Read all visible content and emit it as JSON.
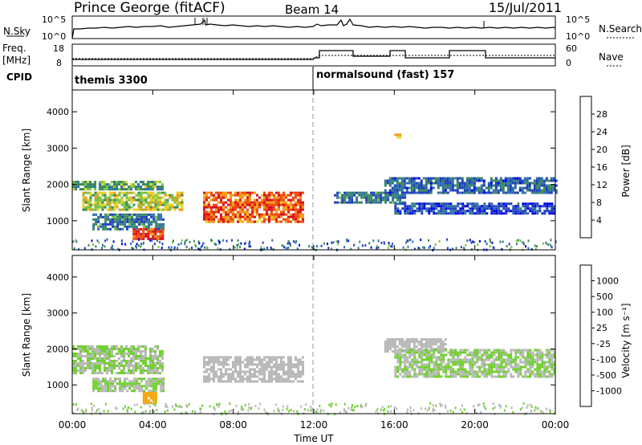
{
  "header": {
    "title": "Prince George (fitACF)",
    "beam": "Beam 14",
    "date": "15/Jul/2011"
  },
  "top_panels": {
    "nsky_label": "N.Sky",
    "nsky_ticks": [
      "10^5",
      "10^0"
    ],
    "nsearch_ticks": [
      "10^5",
      "10^0"
    ],
    "nsearch_label": "N.Search",
    "freq_label": "Freq.",
    "freq_unit": "[MHz]",
    "freq_ticks": [
      "18",
      "8"
    ],
    "nave_ticks": [
      "60",
      "0"
    ],
    "nave_label": "Nave",
    "cpid_label": "CPID",
    "cpid_segments": [
      "themis 3300",
      "normalsound (fast) 157"
    ]
  },
  "chart_data": [
    {
      "type": "heatmap",
      "ylabel": "Slant Range [km]",
      "y_ticks": [
        "1000",
        "2000",
        "3000",
        "4000"
      ],
      "ylim": [
        200,
        4600
      ],
      "colorbar": {
        "label": "Power [dB]",
        "ticks": [
          "4",
          "8",
          "12",
          "16",
          "20",
          "24",
          "28"
        ],
        "colors": [
          "#0000e6",
          "#1f3fbf",
          "#2f6fa8",
          "#3a8a5a",
          "#7ac24a",
          "#e8d22a",
          "#f39a17",
          "#ee4a10",
          "#d8101a"
        ]
      },
      "features": [
        {
          "start_ut": 0.0,
          "end_ut": 4.5,
          "range_km": [
            1850,
            2100
          ],
          "power_db": 14
        },
        {
          "start_ut": 0.5,
          "end_ut": 5.5,
          "range_km": [
            1300,
            1800
          ],
          "power_db": 18
        },
        {
          "start_ut": 1.0,
          "end_ut": 4.5,
          "range_km": [
            800,
            1200
          ],
          "power_db": 10
        },
        {
          "start_ut": 3.0,
          "end_ut": 4.5,
          "range_km": [
            500,
            800
          ],
          "power_db": 28
        },
        {
          "start_ut": 6.5,
          "end_ut": 11.5,
          "range_km": [
            1000,
            1800
          ],
          "power_db": 26
        },
        {
          "start_ut": 13.0,
          "end_ut": 16.5,
          "range_km": [
            1500,
            1800
          ],
          "power_db": 10
        },
        {
          "start_ut": 15.5,
          "end_ut": 24.0,
          "range_km": [
            1800,
            2200
          ],
          "power_db": 8
        },
        {
          "start_ut": 16.0,
          "end_ut": 24.0,
          "range_km": [
            1200,
            1500
          ],
          "power_db": 6
        },
        {
          "start_ut": 16.0,
          "end_ut": 16.3,
          "range_km": [
            3300,
            3400
          ],
          "power_db": 20
        }
      ]
    },
    {
      "type": "heatmap",
      "ylabel": "Slant Range [km]",
      "y_ticks": [
        "1000",
        "2000",
        "3000",
        "4000"
      ],
      "ylim": [
        200,
        4600
      ],
      "x_ticks": [
        "00:00",
        "04:00",
        "08:00",
        "12:00",
        "16:00",
        "20:00",
        "00:00"
      ],
      "xlabel": "Time UT",
      "colorbar": {
        "label": "Velocity [m s⁻¹]",
        "ticks": [
          "1000",
          "500",
          "100",
          "25",
          "-25",
          "-100",
          "-500",
          "-1000"
        ],
        "colors": [
          "#2a3aa8",
          "#2f6fb8",
          "#36a0a0",
          "#3aa552",
          "#6fcf2c",
          "#b8b8b8",
          "#f6a300",
          "#f07a10",
          "#ea4a12",
          "#e01616"
        ]
      },
      "features": [
        {
          "start_ut": 0.0,
          "end_ut": 4.5,
          "range_km": [
            1300,
            2100
          ],
          "velocity_ms": 0
        },
        {
          "start_ut": 1.0,
          "end_ut": 4.5,
          "range_km": [
            800,
            1200
          ],
          "velocity_ms": 0
        },
        {
          "start_ut": 3.5,
          "end_ut": 4.2,
          "range_km": [
            500,
            800
          ],
          "velocity_ms": -300
        },
        {
          "start_ut": 6.5,
          "end_ut": 11.5,
          "range_km": [
            1100,
            1800
          ],
          "velocity_ms": -150
        },
        {
          "start_ut": 15.5,
          "end_ut": 18.5,
          "range_km": [
            1900,
            2300
          ],
          "velocity_ms": -150
        },
        {
          "start_ut": 16.0,
          "end_ut": 24.0,
          "range_km": [
            1200,
            2000
          ],
          "velocity_ms": 0
        }
      ]
    }
  ]
}
